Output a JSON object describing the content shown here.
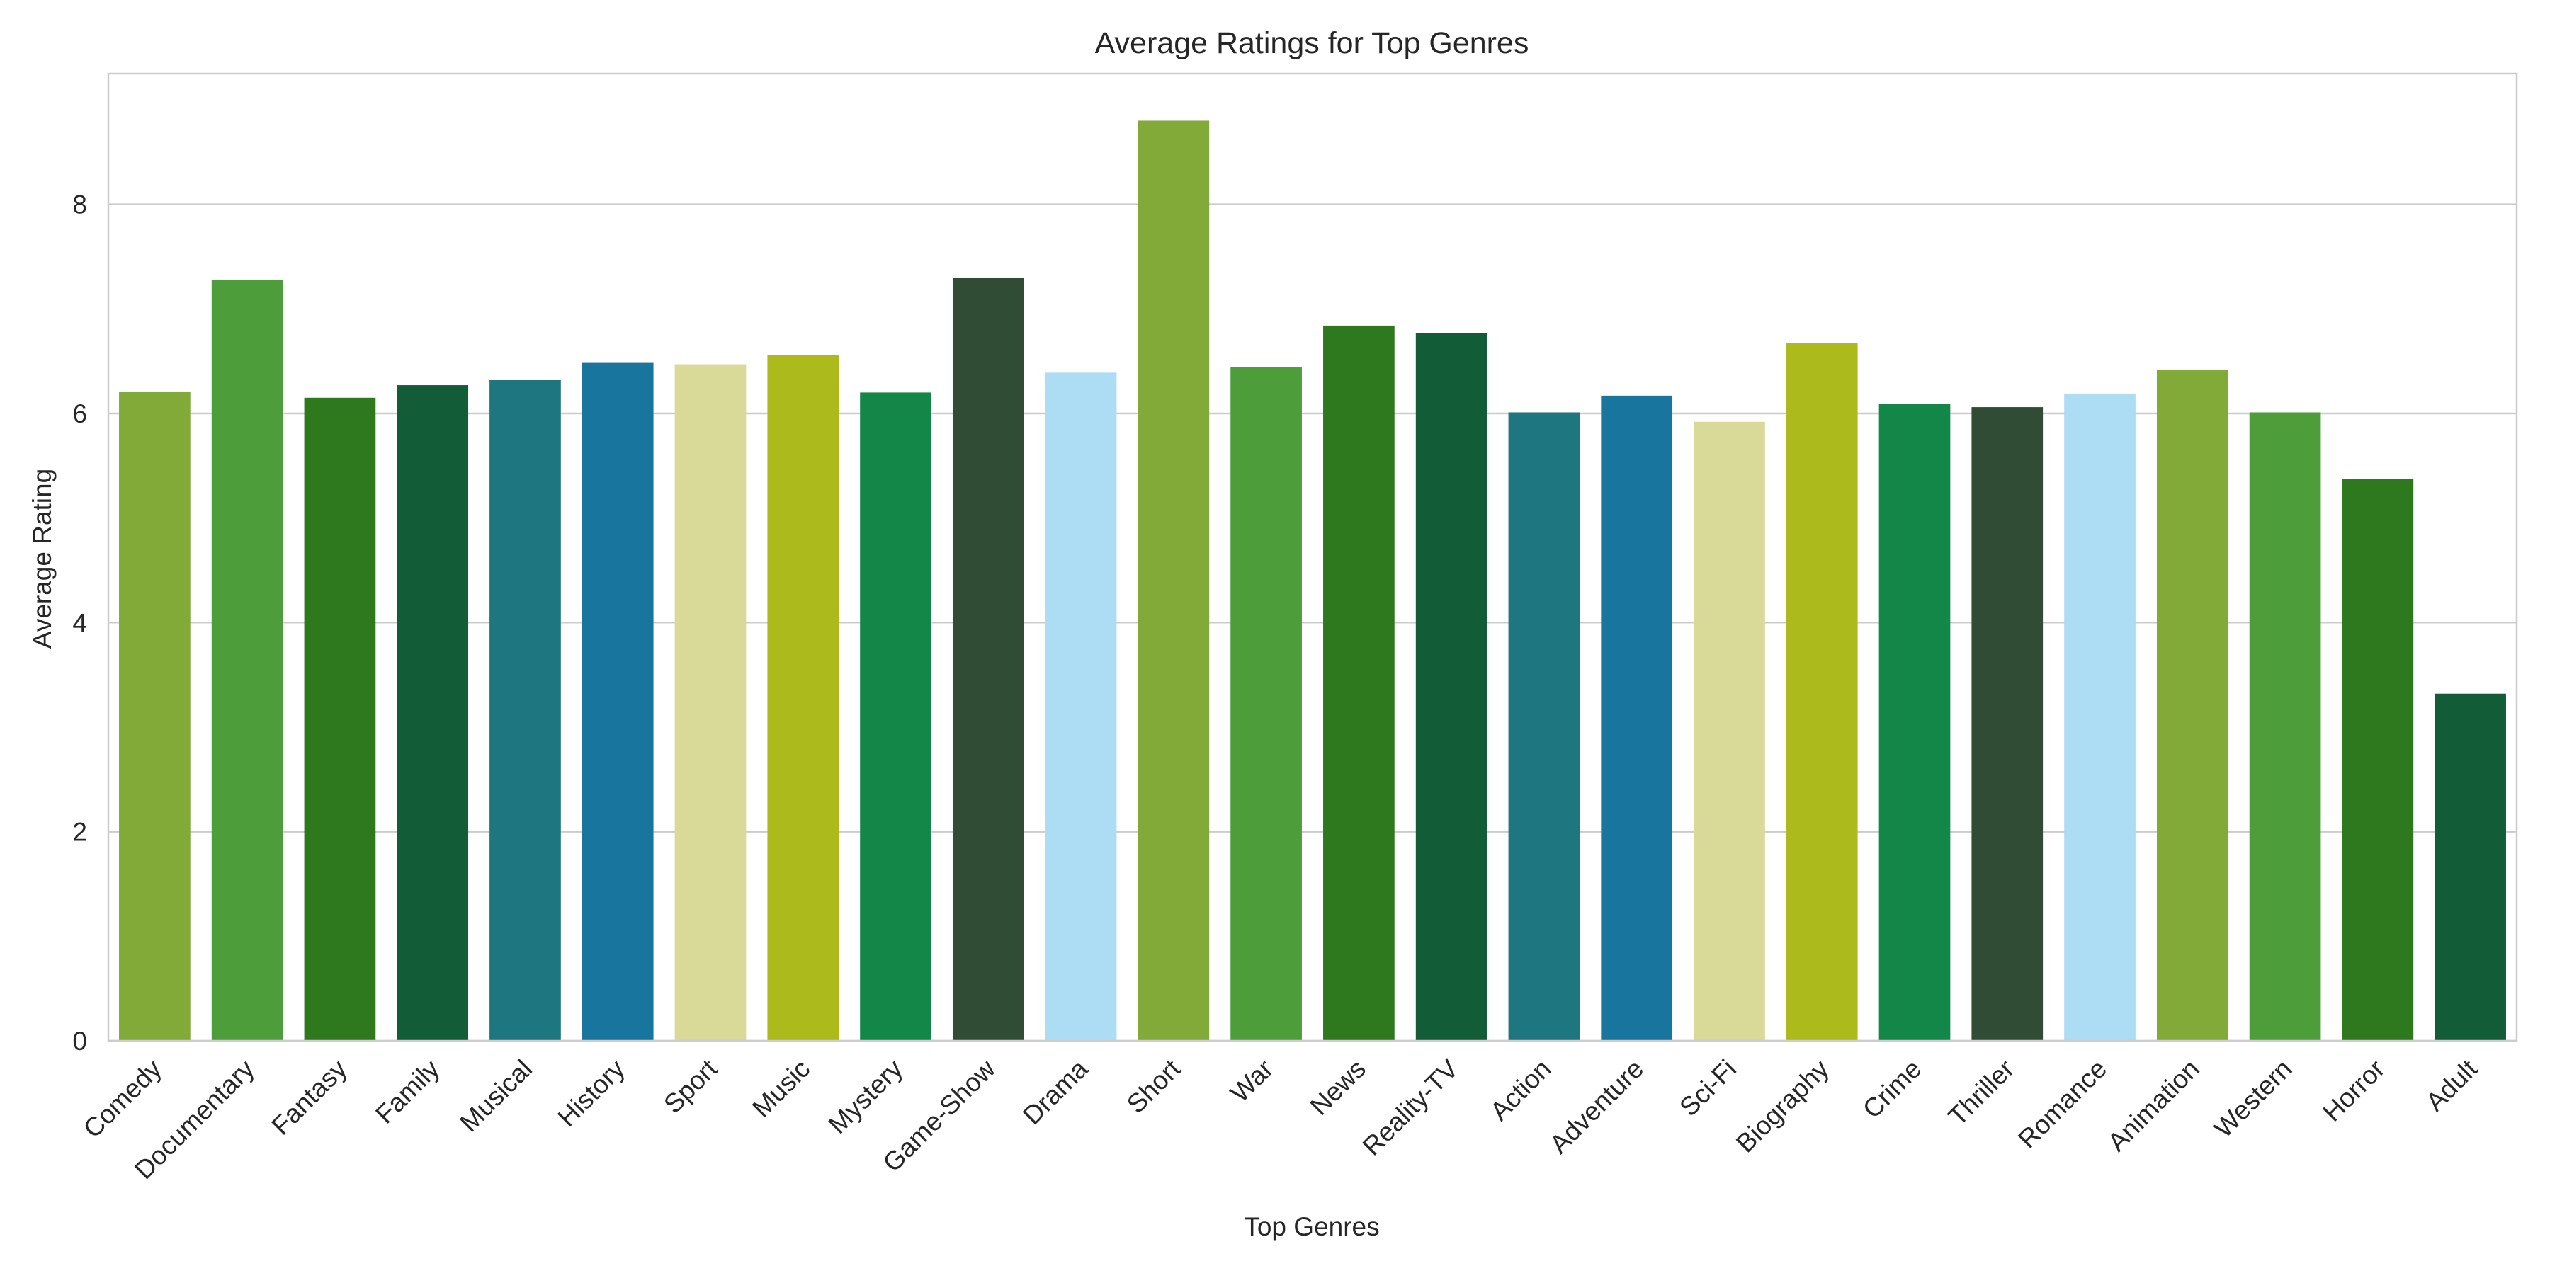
{
  "chart_data": {
    "type": "bar",
    "title": "Average Ratings for Top Genres",
    "xlabel": "Top Genres",
    "ylabel": "Average Rating",
    "ylim": [
      0,
      9.25
    ],
    "yticks": [
      0,
      2,
      4,
      6,
      8
    ],
    "grid": "horizontal",
    "categories": [
      "Comedy",
      "Documentary",
      "Fantasy",
      "Family",
      "Musical",
      "History",
      "Sport",
      "Music",
      "Mystery",
      "Game-Show",
      "Drama",
      "Short",
      "War",
      "News",
      "Reality-TV",
      "Action",
      "Adventure",
      "Sci-Fi",
      "Biography",
      "Crime",
      "Thriller",
      "Romance",
      "Animation",
      "Western",
      "Horror",
      "Adult"
    ],
    "values": [
      6.21,
      7.28,
      6.15,
      6.27,
      6.32,
      6.49,
      6.47,
      6.56,
      6.2,
      7.3,
      6.39,
      8.8,
      6.44,
      6.84,
      6.77,
      6.01,
      6.17,
      5.92,
      6.67,
      6.09,
      6.06,
      6.19,
      6.42,
      6.01,
      5.37,
      3.32
    ],
    "colors": [
      "#81aa39",
      "#4d9e3b",
      "#2e781e",
      "#125d38",
      "#1e7780",
      "#18759e",
      "#d9d998",
      "#adba1c",
      "#138747",
      "#314c35",
      "#addcf5",
      "#81aa39",
      "#4d9e3b",
      "#2e781e",
      "#125d38",
      "#1e7780",
      "#18759e",
      "#d9d998",
      "#adba1c",
      "#138747",
      "#314c35",
      "#addcf5",
      "#81aa39",
      "#4d9e3b",
      "#2e781e",
      "#125d38"
    ]
  }
}
